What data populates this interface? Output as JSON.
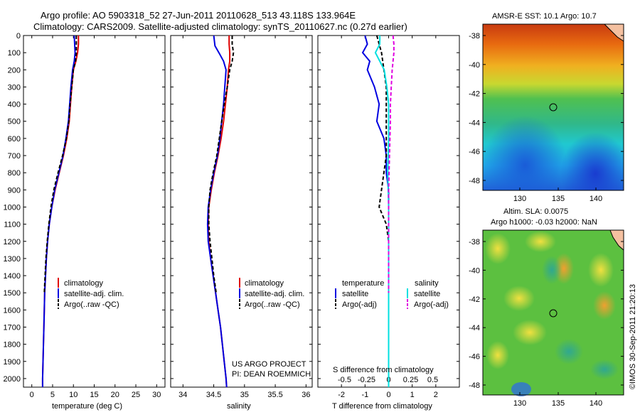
{
  "header": {
    "line1": "Argo profile: AO 5903318_52 27-Jun-2011 20110628_513 43.118S 133.964E",
    "line2": "Climatology: CARS2009. Satellite-adjusted climatology: synTS_20110627.nc (0.27d earlier)"
  },
  "colors": {
    "climatology": "#e00000",
    "satellite": "#0000e0",
    "argo": "#000000",
    "sal_satellite": "#00e0e0",
    "sal_argo": "#e000e0"
  },
  "depth_axis": {
    "ticks": [
      "0",
      "100",
      "200",
      "300",
      "400",
      "500",
      "600",
      "700",
      "800",
      "900",
      "1000",
      "1100",
      "1200",
      "1300",
      "1400",
      "1500",
      "1600",
      "1700",
      "1800",
      "1900",
      "2000"
    ]
  },
  "panel_temp": {
    "xlabel": "temperature (deg C)",
    "xticks": [
      "0",
      "5",
      "10",
      "15",
      "20",
      "25",
      "30"
    ],
    "legend": [
      "climatology",
      "satellite-adj. clim.",
      "Argo(..raw -QC)"
    ]
  },
  "panel_sal": {
    "xlabel": "salinity",
    "xticks": [
      "34",
      "34.5",
      "35",
      "35.5",
      "36"
    ],
    "legend": [
      "climatology",
      "satellite-adj. clim.",
      "Argo(..raw -QC)"
    ],
    "credit1": "US ARGO PROJECT",
    "credit2": "PI: DEAN ROEMMICH"
  },
  "panel_diff": {
    "xlabel": "T difference from climatology",
    "xticks": [
      "-2",
      "-1",
      "0",
      "1",
      "2"
    ],
    "top_label": "S difference from climatology",
    "top_ticks": [
      "-0.5",
      "-0.25",
      "0",
      "0.25",
      "0.5"
    ],
    "legend_t_title": "temperature",
    "legend_s_title": "salinity",
    "legend_t": [
      "satellite",
      "Argo(-adj)"
    ],
    "legend_s": [
      "satellite",
      "Argo(-adj)"
    ]
  },
  "map_sst": {
    "title": "AMSR-E SST: 10.1 Argo: 10.7",
    "yticks": [
      "-38",
      "-40",
      "-42",
      "-44",
      "-46",
      "-48"
    ],
    "xticks": [
      "130",
      "135",
      "140"
    ]
  },
  "map_sla": {
    "title1": "Altim. SLA: 0.0075",
    "title2": "Argo h1000: -0.03 h2000: NaN",
    "yticks": [
      "-38",
      "-40",
      "-42",
      "-44",
      "-46",
      "-48"
    ],
    "xticks": [
      "130",
      "135",
      "140"
    ]
  },
  "footer": {
    "stamp": "©IMOS 30-Sep-2011 21:20:13"
  },
  "chart_data": [
    {
      "type": "line",
      "xlabel": "temperature (deg C)",
      "ylabel": "",
      "xlim": [
        -2,
        32
      ],
      "ylim": [
        0,
        2050
      ],
      "series": [
        {
          "name": "climatology",
          "points": [
            [
              11.2,
              0
            ],
            [
              11.2,
              50
            ],
            [
              11.0,
              100
            ],
            [
              10.6,
              150
            ],
            [
              10.0,
              200
            ],
            [
              9.6,
              300
            ],
            [
              9.3,
              400
            ],
            [
              9.0,
              500
            ],
            [
              8.4,
              600
            ],
            [
              7.6,
              700
            ],
            [
              6.6,
              800
            ],
            [
              5.6,
              900
            ],
            [
              4.8,
              1000
            ],
            [
              4.2,
              1100
            ],
            [
              3.8,
              1200
            ],
            [
              3.5,
              1300
            ],
            [
              3.3,
              1400
            ],
            [
              3.1,
              1500
            ],
            [
              3.0,
              1600
            ],
            [
              2.9,
              1700
            ],
            [
              2.8,
              1800
            ],
            [
              2.7,
              1900
            ],
            [
              2.6,
              2000
            ],
            [
              2.6,
              2050
            ]
          ]
        },
        {
          "name": "satellite-adj. clim.",
          "points": [
            [
              10.2,
              0
            ],
            [
              10.3,
              50
            ],
            [
              10.4,
              100
            ],
            [
              10.2,
              150
            ],
            [
              9.8,
              200
            ],
            [
              9.4,
              300
            ],
            [
              9.1,
              400
            ],
            [
              8.8,
              500
            ],
            [
              8.2,
              600
            ],
            [
              7.5,
              700
            ],
            [
              6.5,
              800
            ],
            [
              5.5,
              900
            ],
            [
              4.8,
              1000
            ],
            [
              4.2,
              1100
            ],
            [
              3.8,
              1200
            ],
            [
              3.5,
              1300
            ],
            [
              3.3,
              1400
            ],
            [
              3.1,
              1500
            ],
            [
              3.0,
              1600
            ],
            [
              2.9,
              1700
            ],
            [
              2.8,
              1800
            ],
            [
              2.7,
              1900
            ],
            [
              2.6,
              2000
            ],
            [
              2.6,
              2050
            ]
          ]
        },
        {
          "name": "Argo(..raw -QC)",
          "points": [
            [
              10.7,
              0
            ],
            [
              10.7,
              50
            ],
            [
              10.7,
              100
            ],
            [
              10.5,
              150
            ],
            [
              10.0,
              200
            ],
            [
              9.6,
              300
            ],
            [
              9.2,
              400
            ],
            [
              8.9,
              500
            ],
            [
              8.3,
              600
            ],
            [
              7.4,
              700
            ],
            [
              6.3,
              800
            ],
            [
              5.3,
              900
            ],
            [
              4.6,
              1000
            ],
            [
              4.1,
              1100
            ],
            [
              3.7,
              1200
            ],
            [
              3.4,
              1300
            ],
            [
              3.2,
              1400
            ],
            [
              3.0,
              1500
            ]
          ]
        }
      ]
    },
    {
      "type": "line",
      "xlabel": "salinity",
      "ylabel": "",
      "xlim": [
        33.8,
        36.1
      ],
      "ylim": [
        0,
        2050
      ],
      "series": [
        {
          "name": "climatology",
          "points": [
            [
              34.75,
              0
            ],
            [
              34.75,
              50
            ],
            [
              34.76,
              100
            ],
            [
              34.76,
              150
            ],
            [
              34.74,
              200
            ],
            [
              34.72,
              300
            ],
            [
              34.69,
              400
            ],
            [
              34.66,
              500
            ],
            [
              34.62,
              600
            ],
            [
              34.57,
              700
            ],
            [
              34.51,
              800
            ],
            [
              34.46,
              900
            ],
            [
              34.42,
              1000
            ],
            [
              34.41,
              1100
            ],
            [
              34.42,
              1200
            ],
            [
              34.45,
              1300
            ],
            [
              34.49,
              1400
            ],
            [
              34.53,
              1500
            ],
            [
              34.57,
              1600
            ],
            [
              34.61,
              1700
            ],
            [
              34.64,
              1800
            ],
            [
              34.67,
              1900
            ],
            [
              34.7,
              2000
            ],
            [
              34.71,
              2050
            ]
          ]
        },
        {
          "name": "satellite-adj. clim.",
          "points": [
            [
              34.5,
              0
            ],
            [
              34.52,
              60
            ],
            [
              34.6,
              110
            ],
            [
              34.66,
              150
            ],
            [
              34.7,
              200
            ],
            [
              34.68,
              300
            ],
            [
              34.66,
              400
            ],
            [
              34.63,
              500
            ],
            [
              34.6,
              600
            ],
            [
              34.56,
              700
            ],
            [
              34.5,
              800
            ],
            [
              34.45,
              900
            ],
            [
              34.41,
              1000
            ],
            [
              34.4,
              1100
            ],
            [
              34.41,
              1200
            ],
            [
              34.45,
              1300
            ],
            [
              34.49,
              1400
            ],
            [
              34.53,
              1500
            ],
            [
              34.57,
              1600
            ],
            [
              34.61,
              1700
            ],
            [
              34.64,
              1800
            ],
            [
              34.67,
              1900
            ],
            [
              34.7,
              2000
            ],
            [
              34.71,
              2050
            ]
          ]
        },
        {
          "name": "Argo(..raw -QC)",
          "points": [
            [
              34.8,
              0
            ],
            [
              34.8,
              50
            ],
            [
              34.82,
              100
            ],
            [
              34.8,
              150
            ],
            [
              34.76,
              200
            ],
            [
              34.72,
              300
            ],
            [
              34.67,
              400
            ],
            [
              34.63,
              500
            ],
            [
              34.59,
              600
            ],
            [
              34.55,
              700
            ],
            [
              34.49,
              800
            ],
            [
              34.44,
              900
            ],
            [
              34.42,
              1000
            ],
            [
              34.42,
              1100
            ],
            [
              34.44,
              1200
            ],
            [
              34.47,
              1300
            ],
            [
              34.5,
              1400
            ],
            [
              34.54,
              1500
            ]
          ]
        }
      ]
    },
    {
      "type": "line",
      "xlabel": "T difference from climatology",
      "ylabel": "",
      "xlim": [
        -3,
        3
      ],
      "ylim": [
        0,
        2050
      ],
      "series": [
        {
          "name": "temperature satellite",
          "points": [
            [
              -1.0,
              0
            ],
            [
              -0.9,
              50
            ],
            [
              -1.1,
              100
            ],
            [
              -0.8,
              150
            ],
            [
              -0.9,
              200
            ],
            [
              -0.6,
              300
            ],
            [
              -0.4,
              400
            ],
            [
              -0.5,
              500
            ],
            [
              -0.2,
              600
            ],
            [
              -0.1,
              700
            ],
            [
              -0.1,
              800
            ],
            [
              0.0,
              900
            ],
            [
              0.0,
              1000
            ],
            [
              0.0,
              1100
            ],
            [
              0.0,
              1200
            ],
            [
              0.0,
              1400
            ],
            [
              0.0,
              1600
            ],
            [
              0.0,
              2050
            ]
          ]
        },
        {
          "name": "temperature Argo(-adj)",
          "points": [
            [
              -0.5,
              0
            ],
            [
              -0.4,
              50
            ],
            [
              -0.3,
              100
            ],
            [
              -0.2,
              200
            ],
            [
              -0.1,
              300
            ],
            [
              -0.1,
              500
            ],
            [
              -0.1,
              700
            ],
            [
              -0.3,
              900
            ],
            [
              -0.4,
              1000
            ],
            [
              -0.1,
              1100
            ],
            [
              0.0,
              1200
            ],
            [
              0.0,
              1500
            ]
          ]
        },
        {
          "name": "salinity satellite",
          "points": [
            [
              -0.1,
              0
            ],
            [
              -0.1,
              50
            ],
            [
              -0.15,
              100
            ],
            [
              -0.1,
              150
            ],
            [
              -0.05,
              200
            ],
            [
              -0.02,
              300
            ],
            [
              0,
              400
            ],
            [
              0,
              600
            ],
            [
              -0.01,
              800
            ],
            [
              0,
              1000
            ],
            [
              0,
              1200
            ],
            [
              0,
              1400
            ],
            [
              0,
              1600
            ],
            [
              0,
              2050
            ]
          ]
        },
        {
          "name": "salinity Argo(-adj)",
          "points": [
            [
              0.05,
              0
            ],
            [
              0.06,
              50
            ],
            [
              0.06,
              100
            ],
            [
              0.05,
              150
            ],
            [
              0.04,
              200
            ],
            [
              0.03,
              300
            ],
            [
              0.02,
              400
            ],
            [
              0.02,
              500
            ],
            [
              0.01,
              700
            ],
            [
              0.0,
              900
            ],
            [
              0.0,
              1100
            ],
            [
              0.0,
              1300
            ],
            [
              0.0,
              1500
            ]
          ]
        }
      ]
    }
  ]
}
